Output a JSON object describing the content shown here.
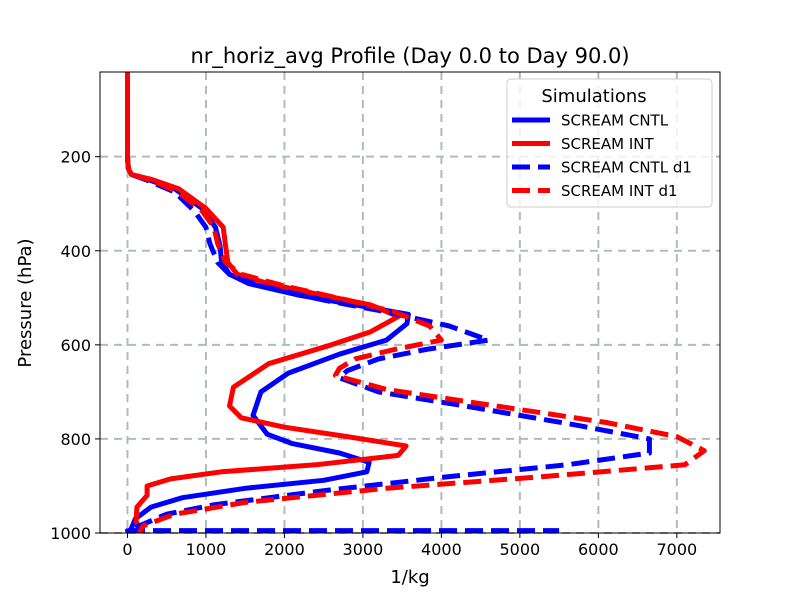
{
  "chart_data": {
    "type": "line",
    "title": "nr_horiz_avg Profile (Day 0.0 to Day 90.0)",
    "xlabel": "1/kg",
    "ylabel": "Pressure (hPa)",
    "xlim": [
      -350,
      7550
    ],
    "ylim": [
      1000,
      20
    ],
    "y_inverted": true,
    "grid": true,
    "grid_style": "dashed",
    "xticks": [
      0,
      1000,
      2000,
      3000,
      4000,
      5000,
      6000,
      7000
    ],
    "yticks": [
      200,
      400,
      600,
      800,
      1000
    ],
    "legend": {
      "title": "Simulations",
      "placement": "top-right"
    },
    "series": [
      {
        "name": "SCREAM CNTL",
        "color": "#0000ff",
        "linestyle": "solid",
        "points": [
          [
            0,
            20
          ],
          [
            0,
            100
          ],
          [
            0,
            200
          ],
          [
            10,
            225
          ],
          [
            50,
            238
          ],
          [
            250,
            248
          ],
          [
            600,
            268
          ],
          [
            950,
            310
          ],
          [
            1120,
            350
          ],
          [
            1180,
            390
          ],
          [
            1200,
            425
          ],
          [
            1300,
            450
          ],
          [
            1550,
            470
          ],
          [
            2200,
            495
          ],
          [
            3000,
            518
          ],
          [
            3580,
            535
          ],
          [
            3560,
            555
          ],
          [
            3300,
            590
          ],
          [
            2700,
            620
          ],
          [
            2050,
            660
          ],
          [
            1700,
            700
          ],
          [
            1600,
            750
          ],
          [
            1780,
            790
          ],
          [
            2100,
            810
          ],
          [
            2700,
            830
          ],
          [
            3080,
            850
          ],
          [
            3050,
            870
          ],
          [
            2500,
            888
          ],
          [
            1500,
            905
          ],
          [
            700,
            925
          ],
          [
            300,
            945
          ],
          [
            100,
            970
          ],
          [
            50,
            990
          ],
          [
            100,
            1000
          ]
        ]
      },
      {
        "name": "SCREAM INT",
        "color": "#ff0000",
        "linestyle": "solid",
        "points": [
          [
            0,
            20
          ],
          [
            0,
            100
          ],
          [
            0,
            200
          ],
          [
            10,
            225
          ],
          [
            50,
            238
          ],
          [
            300,
            248
          ],
          [
            650,
            268
          ],
          [
            1000,
            310
          ],
          [
            1220,
            350
          ],
          [
            1250,
            390
          ],
          [
            1280,
            425
          ],
          [
            1400,
            450
          ],
          [
            1800,
            470
          ],
          [
            2500,
            495
          ],
          [
            3100,
            515
          ],
          [
            3450,
            540
          ],
          [
            3100,
            572
          ],
          [
            2600,
            600
          ],
          [
            1800,
            640
          ],
          [
            1350,
            690
          ],
          [
            1300,
            730
          ],
          [
            1450,
            755
          ],
          [
            2000,
            775
          ],
          [
            2800,
            795
          ],
          [
            3550,
            815
          ],
          [
            3450,
            835
          ],
          [
            2400,
            855
          ],
          [
            1200,
            870
          ],
          [
            550,
            885
          ],
          [
            250,
            900
          ],
          [
            250,
            920
          ],
          [
            120,
            945
          ],
          [
            110,
            975
          ],
          [
            180,
            1000
          ]
        ]
      },
      {
        "name": "SCREAM CNTL d1",
        "color": "#0000ff",
        "linestyle": "dashed",
        "points": [
          [
            0,
            20
          ],
          [
            0,
            100
          ],
          [
            0,
            200
          ],
          [
            10,
            225
          ],
          [
            50,
            238
          ],
          [
            250,
            250
          ],
          [
            600,
            275
          ],
          [
            850,
            315
          ],
          [
            1000,
            350
          ],
          [
            1050,
            385
          ],
          [
            1150,
            425
          ],
          [
            1300,
            450
          ],
          [
            1700,
            475
          ],
          [
            2500,
            505
          ],
          [
            3300,
            530
          ],
          [
            4100,
            560
          ],
          [
            4600,
            590
          ],
          [
            3800,
            610
          ],
          [
            3200,
            630
          ],
          [
            2800,
            655
          ],
          [
            2700,
            670
          ],
          [
            3200,
            700
          ],
          [
            4300,
            730
          ],
          [
            5700,
            770
          ],
          [
            6650,
            800
          ],
          [
            6650,
            830
          ],
          [
            5600,
            855
          ],
          [
            4100,
            880
          ],
          [
            2500,
            910
          ],
          [
            1100,
            940
          ],
          [
            500,
            960
          ],
          [
            150,
            985
          ],
          [
            0,
            995
          ],
          [
            5500,
            995
          ]
        ]
      },
      {
        "name": "SCREAM INT d1",
        "color": "#ff0000",
        "linestyle": "dashed",
        "points": [
          [
            0,
            20
          ],
          [
            0,
            100
          ],
          [
            0,
            200
          ],
          [
            10,
            225
          ],
          [
            50,
            238
          ],
          [
            300,
            250
          ],
          [
            650,
            275
          ],
          [
            950,
            315
          ],
          [
            1100,
            350
          ],
          [
            1150,
            385
          ],
          [
            1250,
            425
          ],
          [
            1450,
            450
          ],
          [
            2000,
            475
          ],
          [
            2800,
            505
          ],
          [
            3400,
            530
          ],
          [
            3850,
            560
          ],
          [
            4000,
            590
          ],
          [
            3400,
            610
          ],
          [
            2900,
            630
          ],
          [
            2700,
            650
          ],
          [
            2650,
            665
          ],
          [
            3300,
            695
          ],
          [
            4700,
            730
          ],
          [
            6100,
            765
          ],
          [
            7000,
            795
          ],
          [
            7350,
            825
          ],
          [
            7100,
            855
          ],
          [
            5300,
            880
          ],
          [
            3300,
            905
          ],
          [
            1500,
            935
          ],
          [
            600,
            960
          ],
          [
            200,
            985
          ],
          [
            150,
            1000
          ]
        ]
      }
    ]
  }
}
